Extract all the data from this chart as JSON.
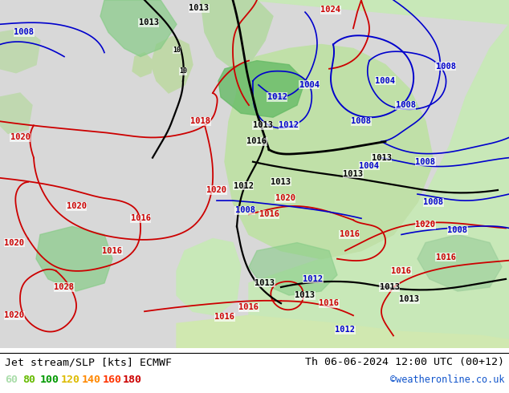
{
  "title_left": "Jet stream/SLP [kts] ECMWF",
  "title_right": "Th 06-06-2024 12:00 UTC (00+12)",
  "credit": "©weatheronline.co.uk",
  "legend_values": [
    "60",
    "80",
    "100",
    "120",
    "140",
    "160",
    "180"
  ],
  "legend_colors": [
    "#aaddaa",
    "#66bb00",
    "#009900",
    "#ddbb00",
    "#ff8800",
    "#ff3300",
    "#cc0000"
  ],
  "fig_width": 6.34,
  "fig_height": 4.9,
  "dpi": 100,
  "map_bg": "#e8e8e8",
  "ocean_color": "#d8d8d8",
  "land_green": "#c8e8b8",
  "land_green2": "#b8dda8",
  "jet_green1": "#90ee90",
  "jet_green2": "#44cc44",
  "jet_green3": "#228822",
  "red_isobar": "#cc0000",
  "blue_isobar": "#0000cc",
  "black_isobar": "#000000"
}
